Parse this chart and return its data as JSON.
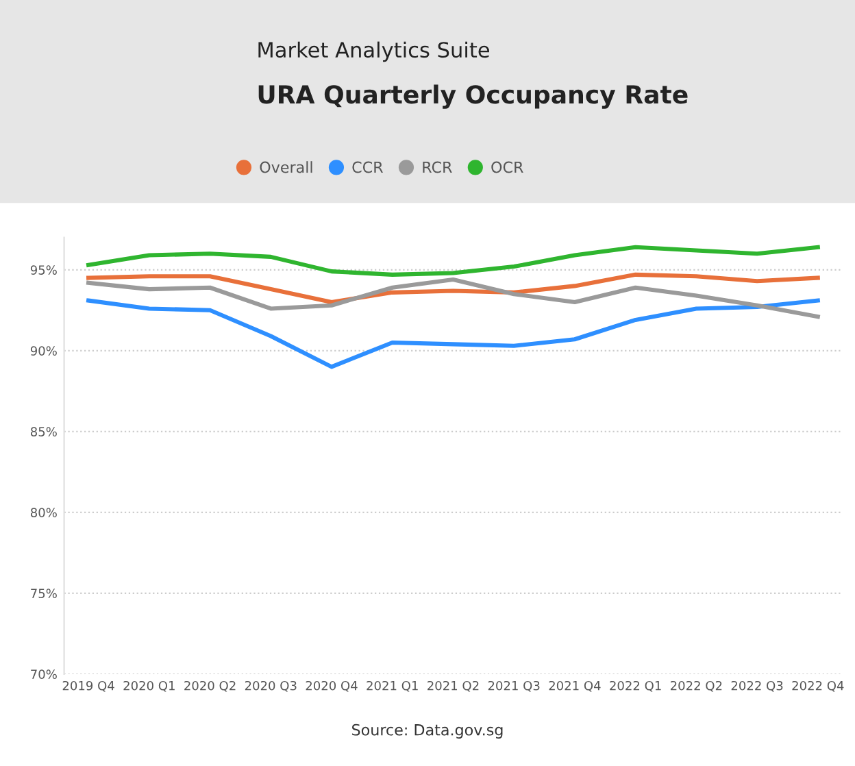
{
  "chart_data": {
    "type": "line",
    "title": "URA Quarterly Occupancy Rate",
    "subtitle": "Market Analytics Suite",
    "categories": [
      "2019 Q4",
      "2020 Q1",
      "2020 Q2",
      "2020 Q3",
      "2020 Q4",
      "2021 Q1",
      "2021 Q2",
      "2021 Q3",
      "2021 Q4",
      "2022 Q1",
      "2022 Q2",
      "2022 Q3",
      "2022 Q4"
    ],
    "series": [
      {
        "name": "Overall",
        "color": "#e8703a",
        "values": [
          94.5,
          94.6,
          94.6,
          93.8,
          93.0,
          93.6,
          93.7,
          93.6,
          94.0,
          94.7,
          94.6,
          94.3,
          94.5
        ]
      },
      {
        "name": "CCR",
        "color": "#2e8fff",
        "values": [
          93.1,
          92.6,
          92.5,
          90.9,
          89.0,
          90.5,
          90.4,
          90.3,
          90.7,
          91.9,
          92.6,
          92.7,
          93.1
        ]
      },
      {
        "name": "RCR",
        "color": "#9a9a9a",
        "values": [
          94.2,
          93.8,
          93.9,
          92.6,
          92.8,
          93.9,
          94.4,
          93.5,
          93.0,
          93.9,
          93.4,
          92.8,
          92.1
        ]
      },
      {
        "name": "OCR",
        "color": "#2fb52f",
        "values": [
          95.3,
          95.9,
          96.0,
          95.8,
          94.9,
          94.7,
          94.8,
          95.2,
          95.9,
          96.4,
          96.2,
          96.0,
          96.4
        ]
      }
    ],
    "ylim": [
      70,
      97
    ],
    "yticks": [
      {
        "value": 70,
        "label": "70%"
      },
      {
        "value": 75,
        "label": "75%"
      },
      {
        "value": 80,
        "label": "80%"
      },
      {
        "value": 85,
        "label": "85%"
      },
      {
        "value": 90,
        "label": "90%"
      },
      {
        "value": 95,
        "label": "95%"
      }
    ],
    "grid": "y",
    "legend": "top",
    "marker": "none",
    "line_style": "solid",
    "annotations": [
      "Source: Data.gov.sg"
    ]
  }
}
